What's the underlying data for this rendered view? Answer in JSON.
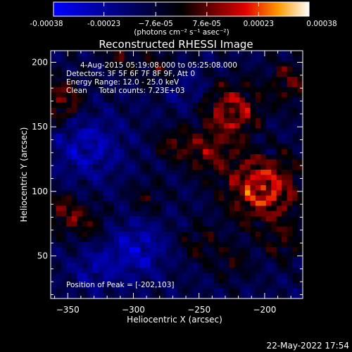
{
  "chart_data": {
    "type": "heatmap",
    "title": "Reconstructed RHESSI Image",
    "xlabel": "Heliocentric X (arcsec)",
    "ylabel": "Heliocentric Y (arcsec)",
    "xlim": [
      -363,
      -171
    ],
    "ylim": [
      17,
      209
    ],
    "x_ticks": [
      -350,
      -300,
      -250,
      -200
    ],
    "y_ticks": [
      50,
      100,
      150,
      200
    ],
    "colorbar": {
      "min": -0.00038,
      "max": 0.00038,
      "tick_values": [
        -0.00038,
        -0.00023,
        -7.6e-05,
        7.6e-05,
        0.00023,
        0.00038
      ],
      "tick_labels": [
        "-0.00038",
        "-0.00023",
        "−7.6e-05",
        "7.6e-05",
        "0.00023",
        "0.00038"
      ],
      "unit": "(photons cm⁻² s⁻¹ asec⁻²)"
    },
    "annotations": [
      "4-Aug-2015 05:19:08.000 to 05:25:08.000",
      "Detectors: 3F 5F 6F 7F 8F 9F, Att 0",
      "Energy Range: 12.0 - 25.0 keV",
      "Clean     Total counts: 7.23E+03",
      "Position of Peak = [-202,103]"
    ],
    "peak": [
      -202,
      103
    ],
    "features": [
      {
        "x": -202,
        "y": 103,
        "amp": 1.0,
        "sigma": 20
      },
      {
        "x": -225,
        "y": 162,
        "amp": 0.8,
        "sigma": 16
      },
      {
        "x": -180,
        "y": 185,
        "amp": 0.55,
        "sigma": 12
      },
      {
        "x": -245,
        "y": 130,
        "amp": 0.55,
        "sigma": 12
      },
      {
        "x": -270,
        "y": 137,
        "amp": 0.5,
        "sigma": 9
      },
      {
        "x": -355,
        "y": 170,
        "amp": 0.7,
        "sigma": 12
      },
      {
        "x": -355,
        "y": 85,
        "amp": 0.6,
        "sigma": 10
      },
      {
        "x": -335,
        "y": 75,
        "amp": 0.45,
        "sigma": 10
      },
      {
        "x": -310,
        "y": 205,
        "amp": 0.45,
        "sigma": 9
      },
      {
        "x": -280,
        "y": 195,
        "amp": 0.4,
        "sigma": 10
      },
      {
        "x": -250,
        "y": 60,
        "amp": 0.4,
        "sigma": 10
      },
      {
        "x": -225,
        "y": 45,
        "amp": 0.35,
        "sigma": 10
      },
      {
        "x": -185,
        "y": 60,
        "amp": 0.4,
        "sigma": 10
      },
      {
        "x": -290,
        "y": 95,
        "amp": 0.35,
        "sigma": 9
      },
      {
        "x": -335,
        "y": 135,
        "amp": -0.55,
        "sigma": 18
      },
      {
        "x": -298,
        "y": 55,
        "amp": -0.6,
        "sigma": 15
      },
      {
        "x": -330,
        "y": 40,
        "amp": -0.4,
        "sigma": 12
      },
      {
        "x": -260,
        "y": 180,
        "amp": -0.3,
        "sigma": 12
      },
      {
        "x": -200,
        "y": 140,
        "amp": -0.2,
        "sigma": 10
      }
    ]
  },
  "footer": {
    "timestamp": "22-May-2022 17:54"
  }
}
